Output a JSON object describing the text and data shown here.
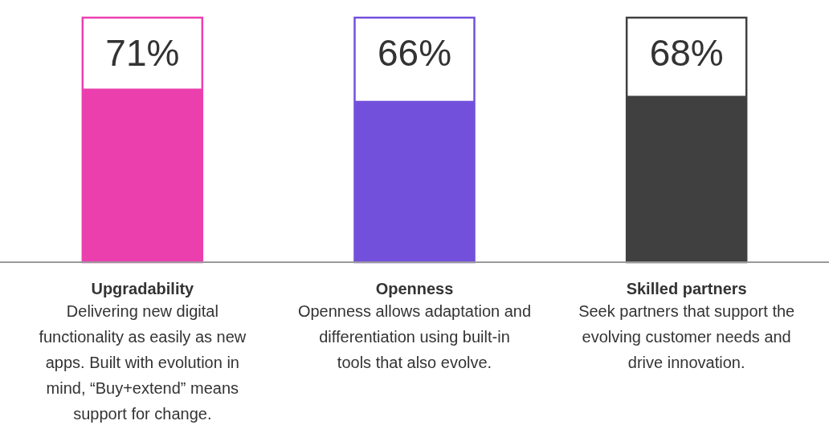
{
  "chart_data": {
    "type": "bar",
    "categories": [
      "Upgradability",
      "Openness",
      "Skilled partners"
    ],
    "values": [
      71,
      66,
      68
    ],
    "colors": [
      "#ec3fae",
      "#7350dc",
      "#404040"
    ],
    "value_labels": [
      "71%",
      "66%",
      "68%"
    ],
    "ylim": [
      0,
      100
    ],
    "annotations": [
      "Delivering new digital functionality as easily as new apps. Built with evolution in mind, “Buy+extend” means support for change.",
      "Openness allows adaptation and differentiation using built-in tools that also evolve.",
      "Seek partners that support the evolving customer needs and drive innovation."
    ]
  }
}
